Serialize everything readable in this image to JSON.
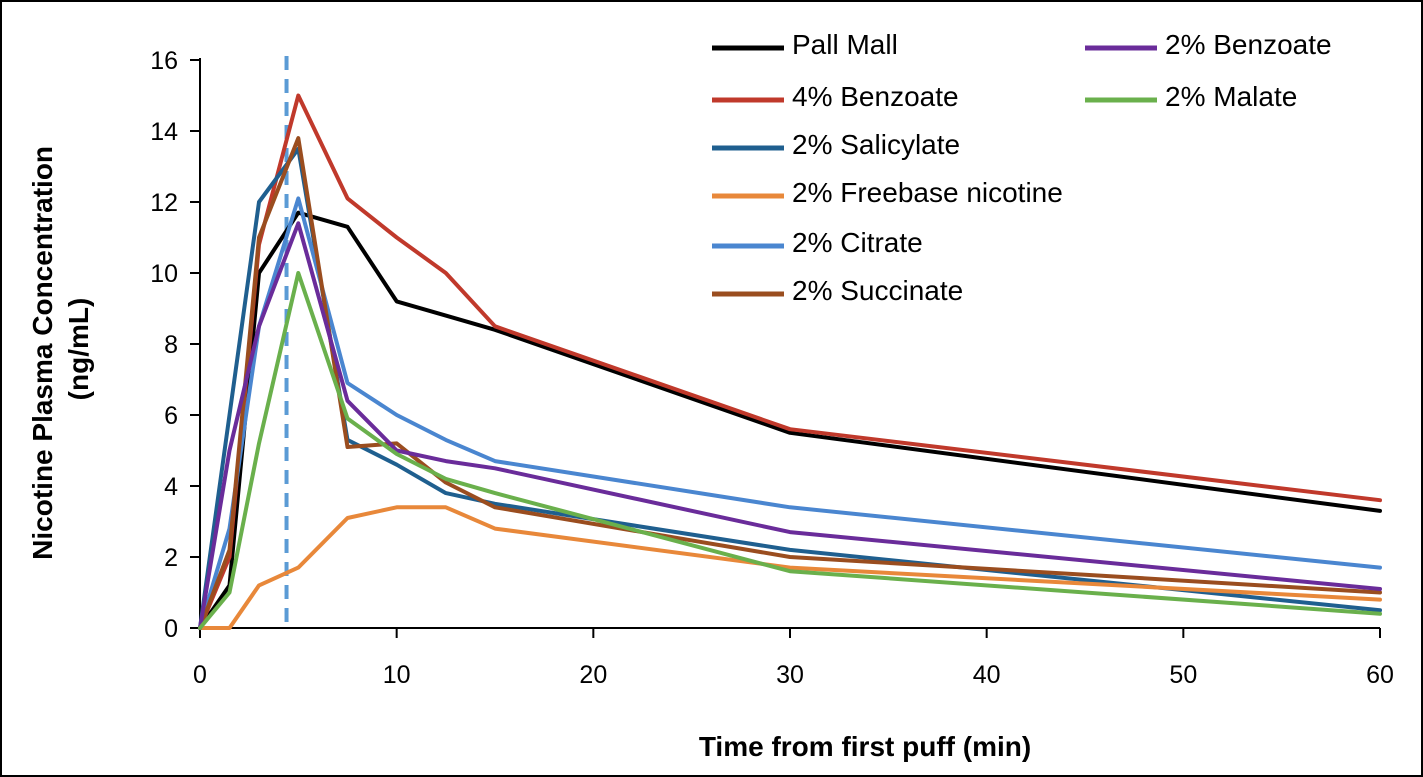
{
  "chart_data": {
    "type": "line",
    "title": "",
    "xlabel": "Time from first puff (min)",
    "ylabel": [
      "Nicotine Plasma Concentration",
      "(ng/mL)"
    ],
    "xlim": [
      0,
      60
    ],
    "ylim": [
      0,
      16
    ],
    "x_ticks": [
      0,
      10,
      20,
      30,
      40,
      50,
      60
    ],
    "y_ticks": [
      0,
      2,
      4,
      6,
      8,
      10,
      12,
      14,
      16
    ],
    "grid": false,
    "legend_position": "top-right",
    "reference_line": {
      "x": 4.4,
      "style": "dashed",
      "color": "#5b9bd5"
    },
    "series": [
      {
        "name": "Pall Mall",
        "color": "#000000",
        "points": [
          [
            0,
            0
          ],
          [
            1.5,
            1.2
          ],
          [
            3,
            10
          ],
          [
            5,
            11.7
          ],
          [
            7.5,
            11.3
          ],
          [
            10,
            9.2
          ],
          [
            12.5,
            8.8
          ],
          [
            15,
            8.4
          ],
          [
            30,
            5.5
          ],
          [
            60,
            3.3
          ]
        ]
      },
      {
        "name": "4% Benzoate",
        "color": "#c0392b",
        "points": [
          [
            0,
            0
          ],
          [
            1.5,
            2
          ],
          [
            3,
            10.8
          ],
          [
            5,
            15
          ],
          [
            7.5,
            12.1
          ],
          [
            10,
            11
          ],
          [
            12.5,
            10
          ],
          [
            15,
            8.5
          ],
          [
            30,
            5.6
          ],
          [
            60,
            3.6
          ]
        ]
      },
      {
        "name": "2% Salicylate",
        "color": "#1f5f8f",
        "points": [
          [
            0,
            0
          ],
          [
            1.5,
            6
          ],
          [
            3,
            12
          ],
          [
            5,
            13.5
          ],
          [
            7.5,
            5.3
          ],
          [
            10,
            4.6
          ],
          [
            12.5,
            3.8
          ],
          [
            15,
            3.5
          ],
          [
            30,
            2.2
          ],
          [
            60,
            0.5
          ]
        ]
      },
      {
        "name": "2% Freebase nicotine",
        "color": "#e8883a",
        "points": [
          [
            0,
            0
          ],
          [
            1.5,
            0
          ],
          [
            3,
            1.2
          ],
          [
            5,
            1.7
          ],
          [
            7.5,
            3.1
          ],
          [
            10,
            3.4
          ],
          [
            12.5,
            3.4
          ],
          [
            15,
            2.8
          ],
          [
            30,
            1.7
          ],
          [
            60,
            0.8
          ]
        ]
      },
      {
        "name": "2% Citrate",
        "color": "#4a86d0",
        "points": [
          [
            0,
            0
          ],
          [
            1.5,
            2.8
          ],
          [
            3,
            8.5
          ],
          [
            5,
            12.1
          ],
          [
            7.5,
            6.9
          ],
          [
            10,
            6
          ],
          [
            12.5,
            5.3
          ],
          [
            15,
            4.7
          ],
          [
            30,
            3.4
          ],
          [
            60,
            1.7
          ]
        ]
      },
      {
        "name": "2% Succinate",
        "color": "#9a4d1f",
        "points": [
          [
            0,
            0
          ],
          [
            1.5,
            2.2
          ],
          [
            3,
            11
          ],
          [
            5,
            13.8
          ],
          [
            7.5,
            5.1
          ],
          [
            10,
            5.2
          ],
          [
            12.5,
            4.1
          ],
          [
            15,
            3.4
          ],
          [
            30,
            2
          ],
          [
            60,
            1
          ]
        ]
      },
      {
        "name": "2% Benzoate",
        "color": "#6a2c9a",
        "points": [
          [
            0,
            0
          ],
          [
            1.5,
            5
          ],
          [
            3,
            8.5
          ],
          [
            5,
            11.4
          ],
          [
            7.5,
            6.4
          ],
          [
            10,
            5
          ],
          [
            12.5,
            4.7
          ],
          [
            15,
            4.5
          ],
          [
            30,
            2.7
          ],
          [
            60,
            1.1
          ]
        ]
      },
      {
        "name": "2% Malate",
        "color": "#6ab04c",
        "points": [
          [
            0,
            0
          ],
          [
            1.5,
            1
          ],
          [
            3,
            5.2
          ],
          [
            5,
            10
          ],
          [
            7.5,
            5.9
          ],
          [
            10,
            4.9
          ],
          [
            12.5,
            4.2
          ],
          [
            15,
            3.8
          ],
          [
            30,
            1.6
          ],
          [
            60,
            0.4
          ]
        ]
      }
    ]
  }
}
